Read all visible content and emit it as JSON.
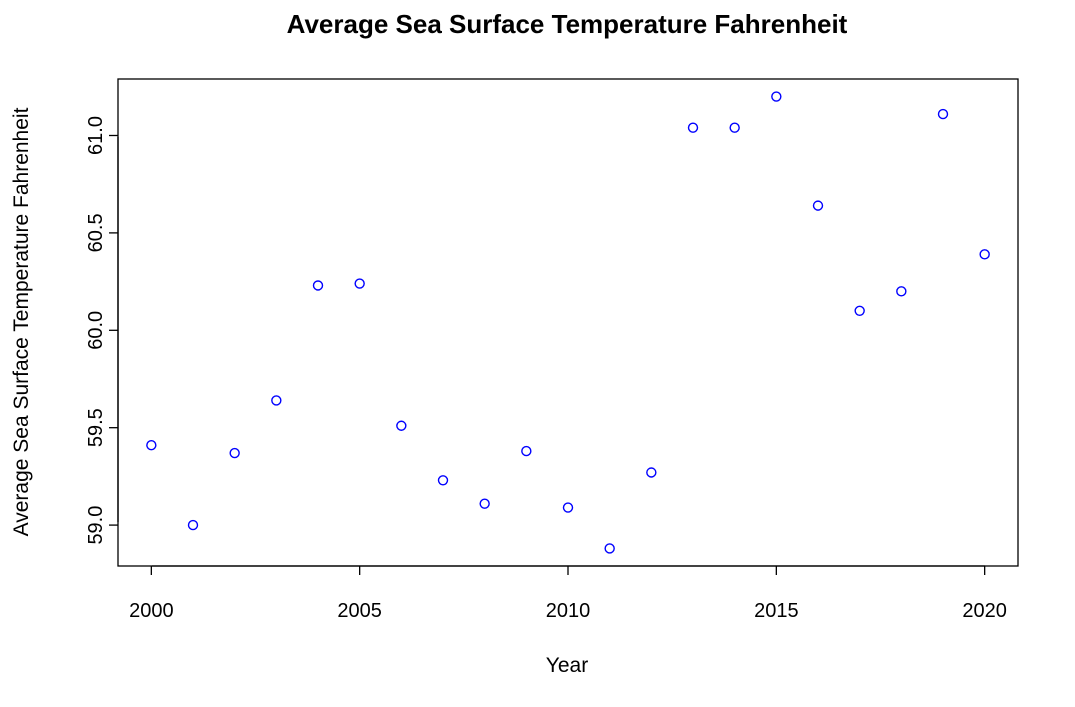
{
  "chart_data": {
    "type": "scatter",
    "title": "Average Sea Surface Temperature Fahrenheit",
    "xlabel": "Year",
    "ylabel": "Average Sea Surface Temperature Fahrenheit",
    "xlim": [
      1999.2,
      2020.8
    ],
    "ylim": [
      58.79,
      61.29
    ],
    "x_ticks": [
      2000,
      2005,
      2010,
      2015,
      2020
    ],
    "x_tick_labels": [
      "2000",
      "2005",
      "2010",
      "2015",
      "2020"
    ],
    "y_ticks": [
      59.0,
      59.5,
      60.0,
      60.5,
      61.0
    ],
    "y_tick_labels": [
      "59.0",
      "59.5",
      "60.0",
      "60.5",
      "61.0"
    ],
    "grid": false,
    "marker": "open-circle",
    "point_color": "#0000ff",
    "series": [
      {
        "name": "Average Sea Surface Temperature Fahrenheit",
        "x": [
          2000,
          2001,
          2002,
          2003,
          2004,
          2005,
          2006,
          2007,
          2008,
          2009,
          2010,
          2011,
          2012,
          2013,
          2014,
          2015,
          2016,
          2017,
          2018,
          2019,
          2020
        ],
        "y": [
          59.41,
          59.0,
          59.37,
          59.64,
          60.23,
          60.24,
          59.51,
          59.23,
          59.11,
          59.38,
          59.09,
          58.88,
          59.27,
          61.04,
          61.04,
          61.2,
          60.64,
          60.1,
          60.2,
          61.11,
          60.39
        ]
      }
    ]
  }
}
